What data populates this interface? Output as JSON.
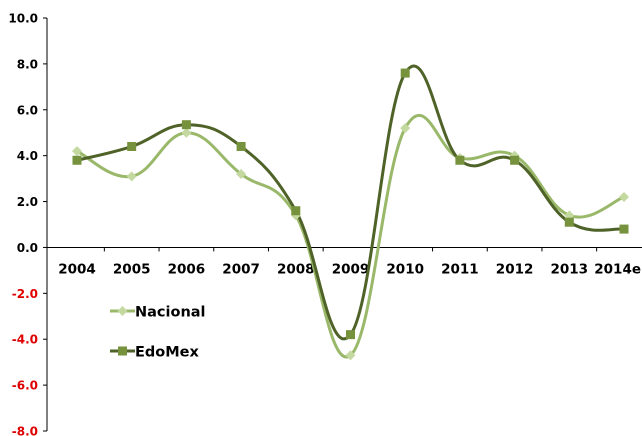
{
  "chart_data": {
    "type": "line",
    "title": "",
    "xlabel": "",
    "ylabel": "",
    "categories": [
      "2004",
      "2005",
      "2006",
      "2007",
      "2008",
      "2009",
      "2010",
      "2011",
      "2012",
      "2013",
      "2014e"
    ],
    "ylim": [
      -8.0,
      10.0
    ],
    "yticks": [
      "10.0",
      "8.0",
      "6.0",
      "4.0",
      "2.0",
      "0.0",
      "-2.0",
      "-4.0",
      "-6.0",
      "-8.0"
    ],
    "negative_tick_color": "#e00000",
    "positive_tick_color": "#000000",
    "smooth": true,
    "grid": false,
    "legend_position": "left-middle",
    "series": [
      {
        "name": "Nacional",
        "color": "#9ab86a",
        "marker_color": "#c3d9a0",
        "marker": "diamond",
        "values": [
          4.2,
          3.1,
          5.0,
          3.2,
          1.4,
          -4.7,
          5.2,
          3.9,
          4.0,
          1.4,
          2.2
        ]
      },
      {
        "name": "EdoMex",
        "color": "#4f6228",
        "marker_color": "#76923c",
        "marker": "square",
        "values": [
          3.8,
          4.4,
          5.35,
          4.4,
          1.6,
          -3.8,
          7.6,
          3.8,
          3.8,
          1.1,
          0.8
        ]
      }
    ]
  }
}
